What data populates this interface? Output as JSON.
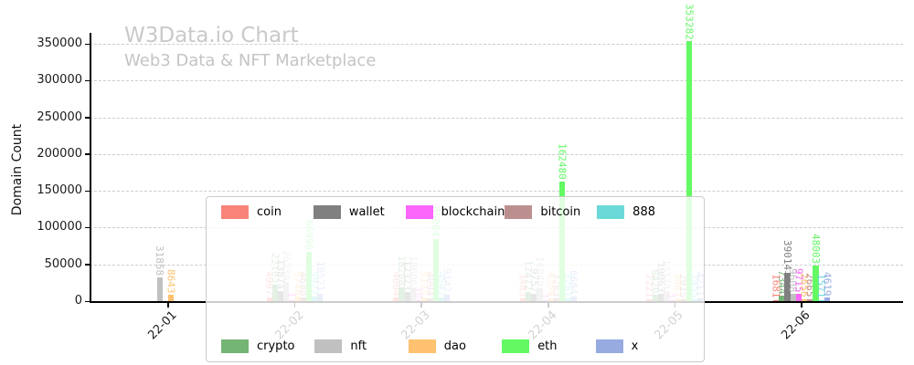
{
  "header": {
    "title": "W3Data.io Chart",
    "subtitle": "Web3 Data & NFT Marketplace"
  },
  "chart_data": {
    "type": "bar",
    "title": "W3Data.io Chart",
    "subtitle": "Web3 Data & NFT Marketplace",
    "xlabel": "",
    "ylabel": "Domain Count",
    "categories": [
      "22-01",
      "22-02",
      "22-03",
      "22-04",
      "22-05",
      "22-06"
    ],
    "series": [
      {
        "name": "coin",
        "color": "#f98379",
        "values": [
          0,
          4997,
          4604,
          3483,
          2221,
          1681
        ]
      },
      {
        "name": "crypto",
        "color": "#74b474",
        "values": [
          0,
          22103,
          18288,
          12472,
          8420,
          7344
        ]
      },
      {
        "name": "wallet",
        "color": "#808080",
        "values": [
          0,
          13874,
          12323,
          9757,
          10063,
          39014
        ]
      },
      {
        "name": "nft",
        "color": "#c0c0c0",
        "values": [
          31858,
          26239,
          18606,
          16840,
          13378,
          9608
        ]
      },
      {
        "name": "blockchain",
        "color": "#fb66fb",
        "values": [
          0,
          1,
          10,
          3,
          3,
          9715
        ]
      },
      {
        "name": "dao",
        "color": "#fdc170",
        "values": [
          8643,
          5746,
          5135,
          4359,
          3067,
          2656
        ]
      },
      {
        "name": "bitcoin",
        "color": "#bc8f8f",
        "values": [
          0,
          4688,
          4094,
          3263,
          2015,
          2665
        ]
      },
      {
        "name": "eth",
        "color": "#63f963",
        "values": [
          0,
          66996,
          85004,
          162480,
          353282,
          48003
        ]
      },
      {
        "name": "888",
        "color": "#6cd9d9",
        "values": [
          0,
          5927,
          4542,
          3281,
          2455,
          1571
        ]
      },
      {
        "name": "x",
        "color": "#97abe1",
        "values": [
          0,
          10521,
          9147,
          6684,
          4211,
          4619
        ]
      }
    ],
    "ylim": [
      0,
      370000
    ],
    "yticks": [
      0,
      50000,
      100000,
      150000,
      200000,
      250000,
      300000,
      350000
    ],
    "grid": true,
    "grid_style": "dashed",
    "legend_position": "center-overlay-two-rows",
    "legend_rows": [
      [
        "coin",
        "wallet",
        "blockchain",
        "bitcoin",
        "888"
      ],
      [
        "crypto",
        "nft",
        "dao",
        "eth",
        "x"
      ]
    ]
  }
}
